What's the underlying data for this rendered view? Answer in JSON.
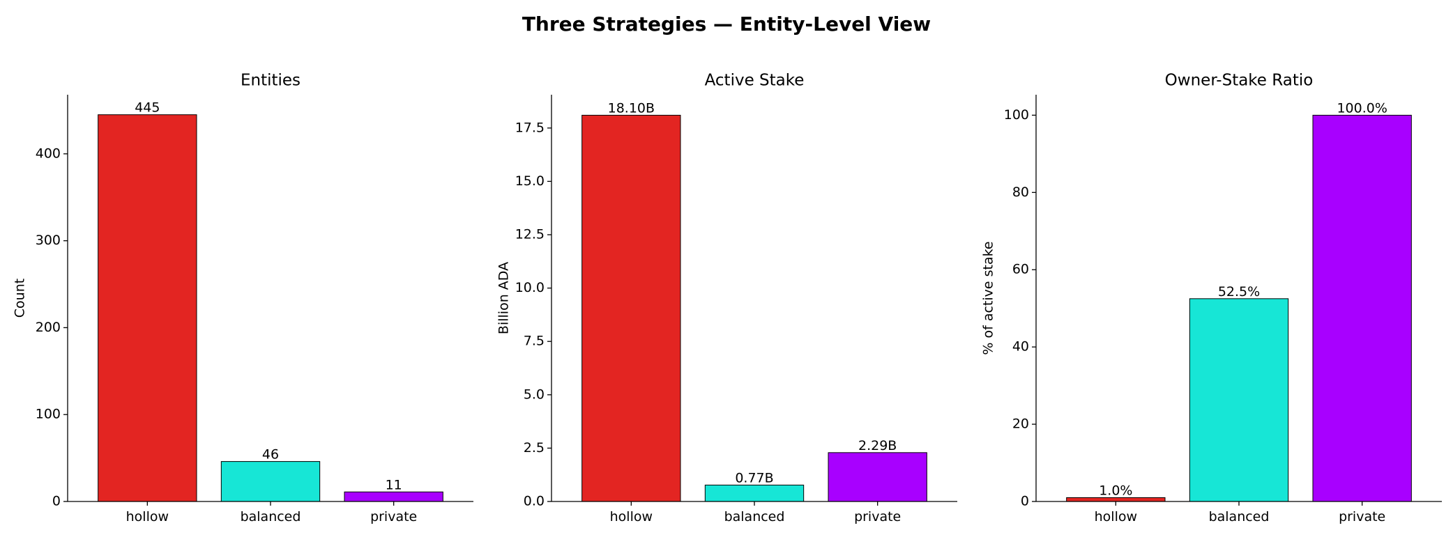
{
  "title": "Three Strategies — Entity-Level View",
  "chart_data": [
    {
      "type": "bar",
      "title": "Entities",
      "y_label": "Count",
      "categories": [
        "hollow",
        "balanced",
        "private"
      ],
      "values": [
        445,
        46,
        11
      ],
      "colors": [
        "#e32522",
        "#17e6d6",
        "#a800ff"
      ],
      "ylim": [
        0,
        468
      ],
      "yticks": [
        0,
        100,
        200,
        300,
        400
      ]
    },
    {
      "type": "bar",
      "title": "Active Stake",
      "y_label": "Billion ADA",
      "categories": [
        "hollow",
        "balanced",
        "private"
      ],
      "values": [
        18.1,
        0.77,
        2.29
      ],
      "value_labels": [
        "18.10B",
        "0.77B",
        "2.29B"
      ],
      "colors": [
        "#e32522",
        "#17e6d6",
        "#a800ff"
      ],
      "ylim": [
        0,
        19.06
      ],
      "yticks": [
        {
          "value": 0,
          "label": "0.0"
        },
        2.5,
        {
          "value": 5,
          "label": "5.0"
        },
        7.5,
        {
          "value": 10,
          "label": "10.0"
        },
        12.5,
        {
          "value": 15,
          "label": "15.0"
        },
        17.5
      ]
    },
    {
      "type": "bar",
      "title": "Owner-Stake Ratio",
      "y_label": "% of active stake",
      "categories": [
        "hollow",
        "balanced",
        "private"
      ],
      "values": [
        1.0,
        52.5,
        100.0
      ],
      "value_labels": [
        "1.0%",
        "52.5%",
        "100.0%"
      ],
      "colors": [
        "#e32522",
        "#17e6d6",
        "#a800ff"
      ],
      "ylim": [
        0,
        105.3
      ],
      "yticks": [
        0,
        20,
        40,
        60,
        80,
        100
      ]
    }
  ]
}
